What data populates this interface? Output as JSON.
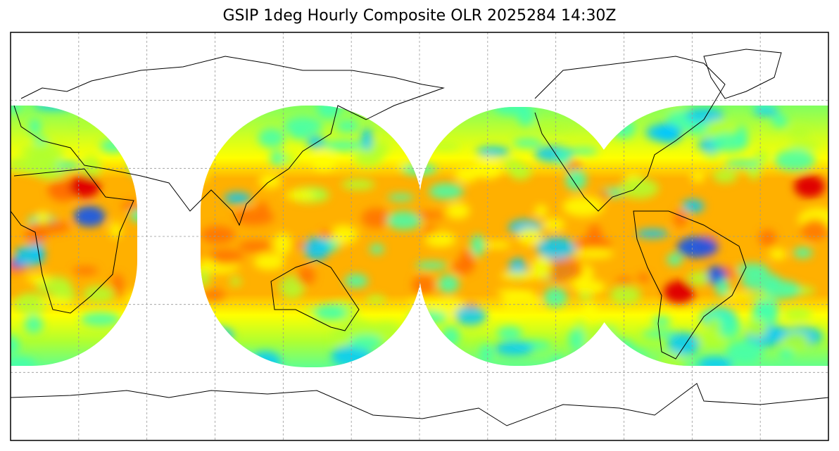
{
  "title": "GSIP 1deg Hourly Composite OLR 2025284 14:30Z",
  "map": {
    "projection": "plate-carree",
    "lon_range": [
      -180,
      180
    ],
    "lat_range": [
      -90,
      90
    ],
    "grid_step_deg": 30,
    "coverage_lat": [
      -60,
      60
    ],
    "colormap": [
      "#0050ff",
      "#00c8ff",
      "#40ffb0",
      "#b0ff30",
      "#ffff00",
      "#ffb000",
      "#ff7000",
      "#e00000"
    ],
    "background": "#ffffff",
    "coastline_color": "#000000"
  }
}
